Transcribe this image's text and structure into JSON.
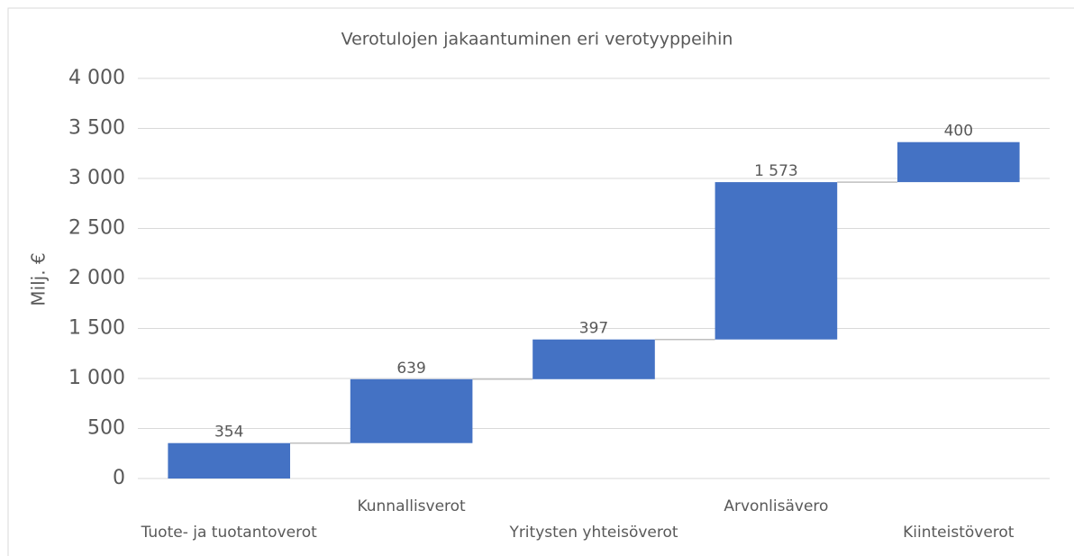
{
  "chart_data": {
    "type": "waterfall",
    "title": "Verotulojen jakaantuminen eri verotyyppeihin",
    "y_label": "Milj. €",
    "categories": [
      "Tuote- ja tuotantoverot",
      "Kunnallisverot",
      "Yritysten yhteisöverot",
      "Arvonlisävero",
      "Kiinteistöverot"
    ],
    "values": [
      354,
      639,
      397,
      1573,
      400
    ],
    "value_labels": [
      "354",
      "639",
      "397",
      "1 573",
      "400"
    ],
    "color": "#4472c4",
    "ylim": [
      0,
      4000
    ],
    "yticks": [
      0,
      500,
      {
        "value": 1000,
        "label": "1 000"
      },
      {
        "value": 1500,
        "label": "1 500"
      },
      {
        "value": 2000,
        "label": "2 000"
      },
      {
        "value": 2500,
        "label": "2 500"
      },
      {
        "value": 3000,
        "label": "3 000"
      },
      {
        "value": 3500,
        "label": "3 500"
      },
      {
        "value": 4000,
        "label": "4 000"
      }
    ],
    "grid": true
  }
}
